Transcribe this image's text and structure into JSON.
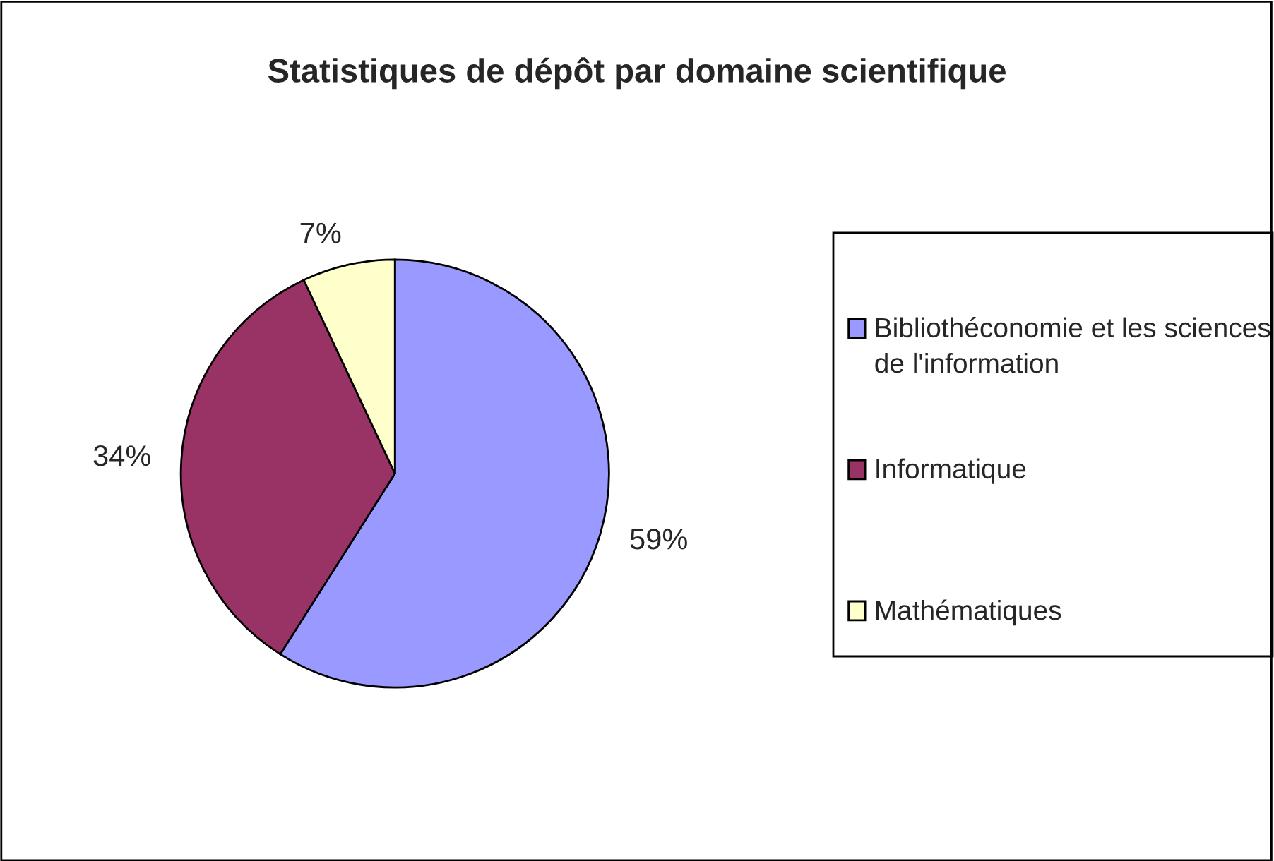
{
  "chart_data": {
    "type": "pie",
    "title": "Statistiques de dépôt par domaine scientifique",
    "categories": [
      "Bibliothéconomie et les sciences de l'information",
      "Informatique",
      "Mathématiques"
    ],
    "values": [
      59,
      34,
      7
    ],
    "colors": [
      "#9999ff",
      "#993366",
      "#ffffcc"
    ],
    "value_labels": [
      "59%",
      "34%",
      "7%"
    ],
    "legend": "right"
  }
}
